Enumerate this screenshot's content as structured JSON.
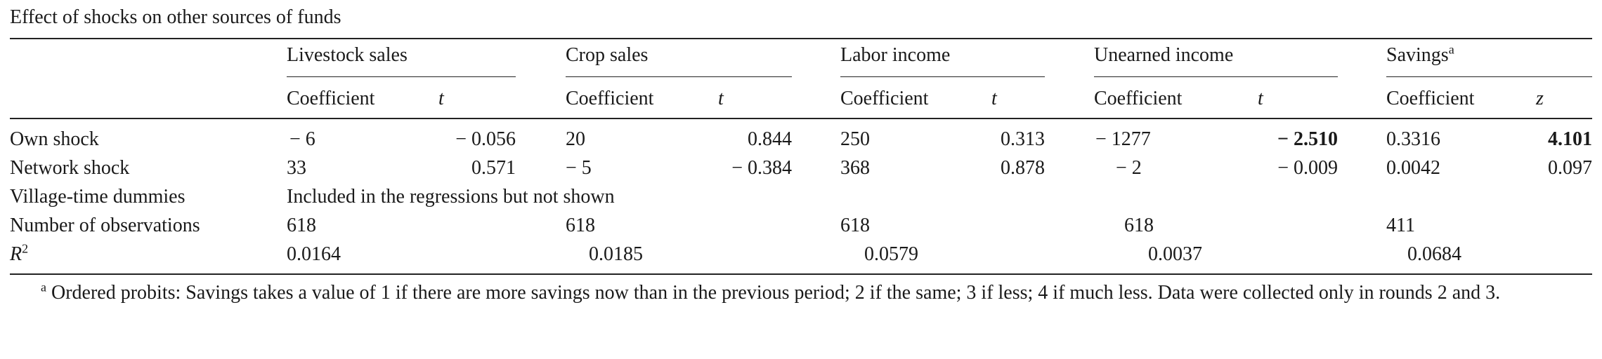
{
  "caption": "Effect of shocks on other sources of funds",
  "groups": [
    {
      "label": "Livestock sales",
      "sup": ""
    },
    {
      "label": "Crop sales",
      "sup": ""
    },
    {
      "label": "Labor income",
      "sup": ""
    },
    {
      "label": "Unearned income",
      "sup": ""
    },
    {
      "label": "Savings",
      "sup": "a"
    }
  ],
  "subheaders": [
    {
      "coef": "Coefficient",
      "stat": "t"
    },
    {
      "coef": "Coefficient",
      "stat": "t"
    },
    {
      "coef": "Coefficient",
      "stat": "t"
    },
    {
      "coef": "Coefficient",
      "stat": "t"
    },
    {
      "coef": "Coefficient",
      "stat": "z"
    }
  ],
  "rows": {
    "own_shock": {
      "label": "Own shock",
      "cells": [
        "− 6",
        "− 0.056",
        "20",
        "0.844",
        "250",
        "0.313",
        "− 1277",
        "− 2.510",
        "0.3316",
        "4.101"
      ]
    },
    "network_shock": {
      "label": "Network shock",
      "cells": [
        "33",
        "0.571",
        "− 5",
        "− 0.384",
        "368",
        "0.878",
        "− 2",
        "− 0.009",
        "0.0042",
        "0.097"
      ]
    },
    "dummies": {
      "label": "Village-time dummies",
      "note": "Included in the regressions but not shown"
    },
    "observations": {
      "label": "Number of observations",
      "cells": [
        "618",
        "618",
        "618",
        "618",
        "411"
      ]
    },
    "r2": {
      "label_main": "R",
      "label_sup": "2",
      "cells": [
        "0.0164",
        "0.0185",
        "0.0579",
        "0.0037",
        "0.0684"
      ]
    }
  },
  "footnote": {
    "marker": "a",
    "text": "Ordered probits: Savings takes a value of 1 if there are more savings now than in the previous period; 2 if the same; 3 if less; 4 if much less. Data were collected only in rounds 2 and 3."
  }
}
